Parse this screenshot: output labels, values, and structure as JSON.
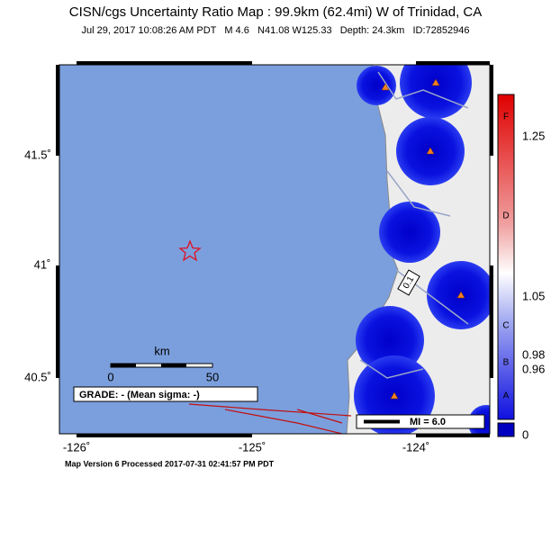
{
  "header": {
    "title": "CISN/cgs Uncertainty Ratio Map : 99.9km (62.4mi) W of Trinidad, CA",
    "subtitle": "Jul 29, 2017 10:08:26 AM PDT   M 4.6   N41.08 W125.33   Depth: 24.3km   ID:72852946"
  },
  "map": {
    "lat_labels": [
      "41.5˚",
      "41˚",
      "40.5˚"
    ],
    "lon_labels": [
      "-126˚",
      "-125˚",
      "-124˚"
    ],
    "scale": {
      "unit": "km",
      "start": "0",
      "end": "50"
    },
    "contour_label": "0.1",
    "grade": "GRADE: - (Mean sigma: -)",
    "mi_legend": "MI = 6.0"
  },
  "colorbar": {
    "values": [
      "1.25",
      "1.05",
      "0.98",
      "0.96",
      "0"
    ],
    "letters": [
      "F",
      "D",
      "C",
      "B",
      "A"
    ]
  },
  "footer": "Map Version 6 Processed 2017-07-31 02:41:57 PM PDT"
}
